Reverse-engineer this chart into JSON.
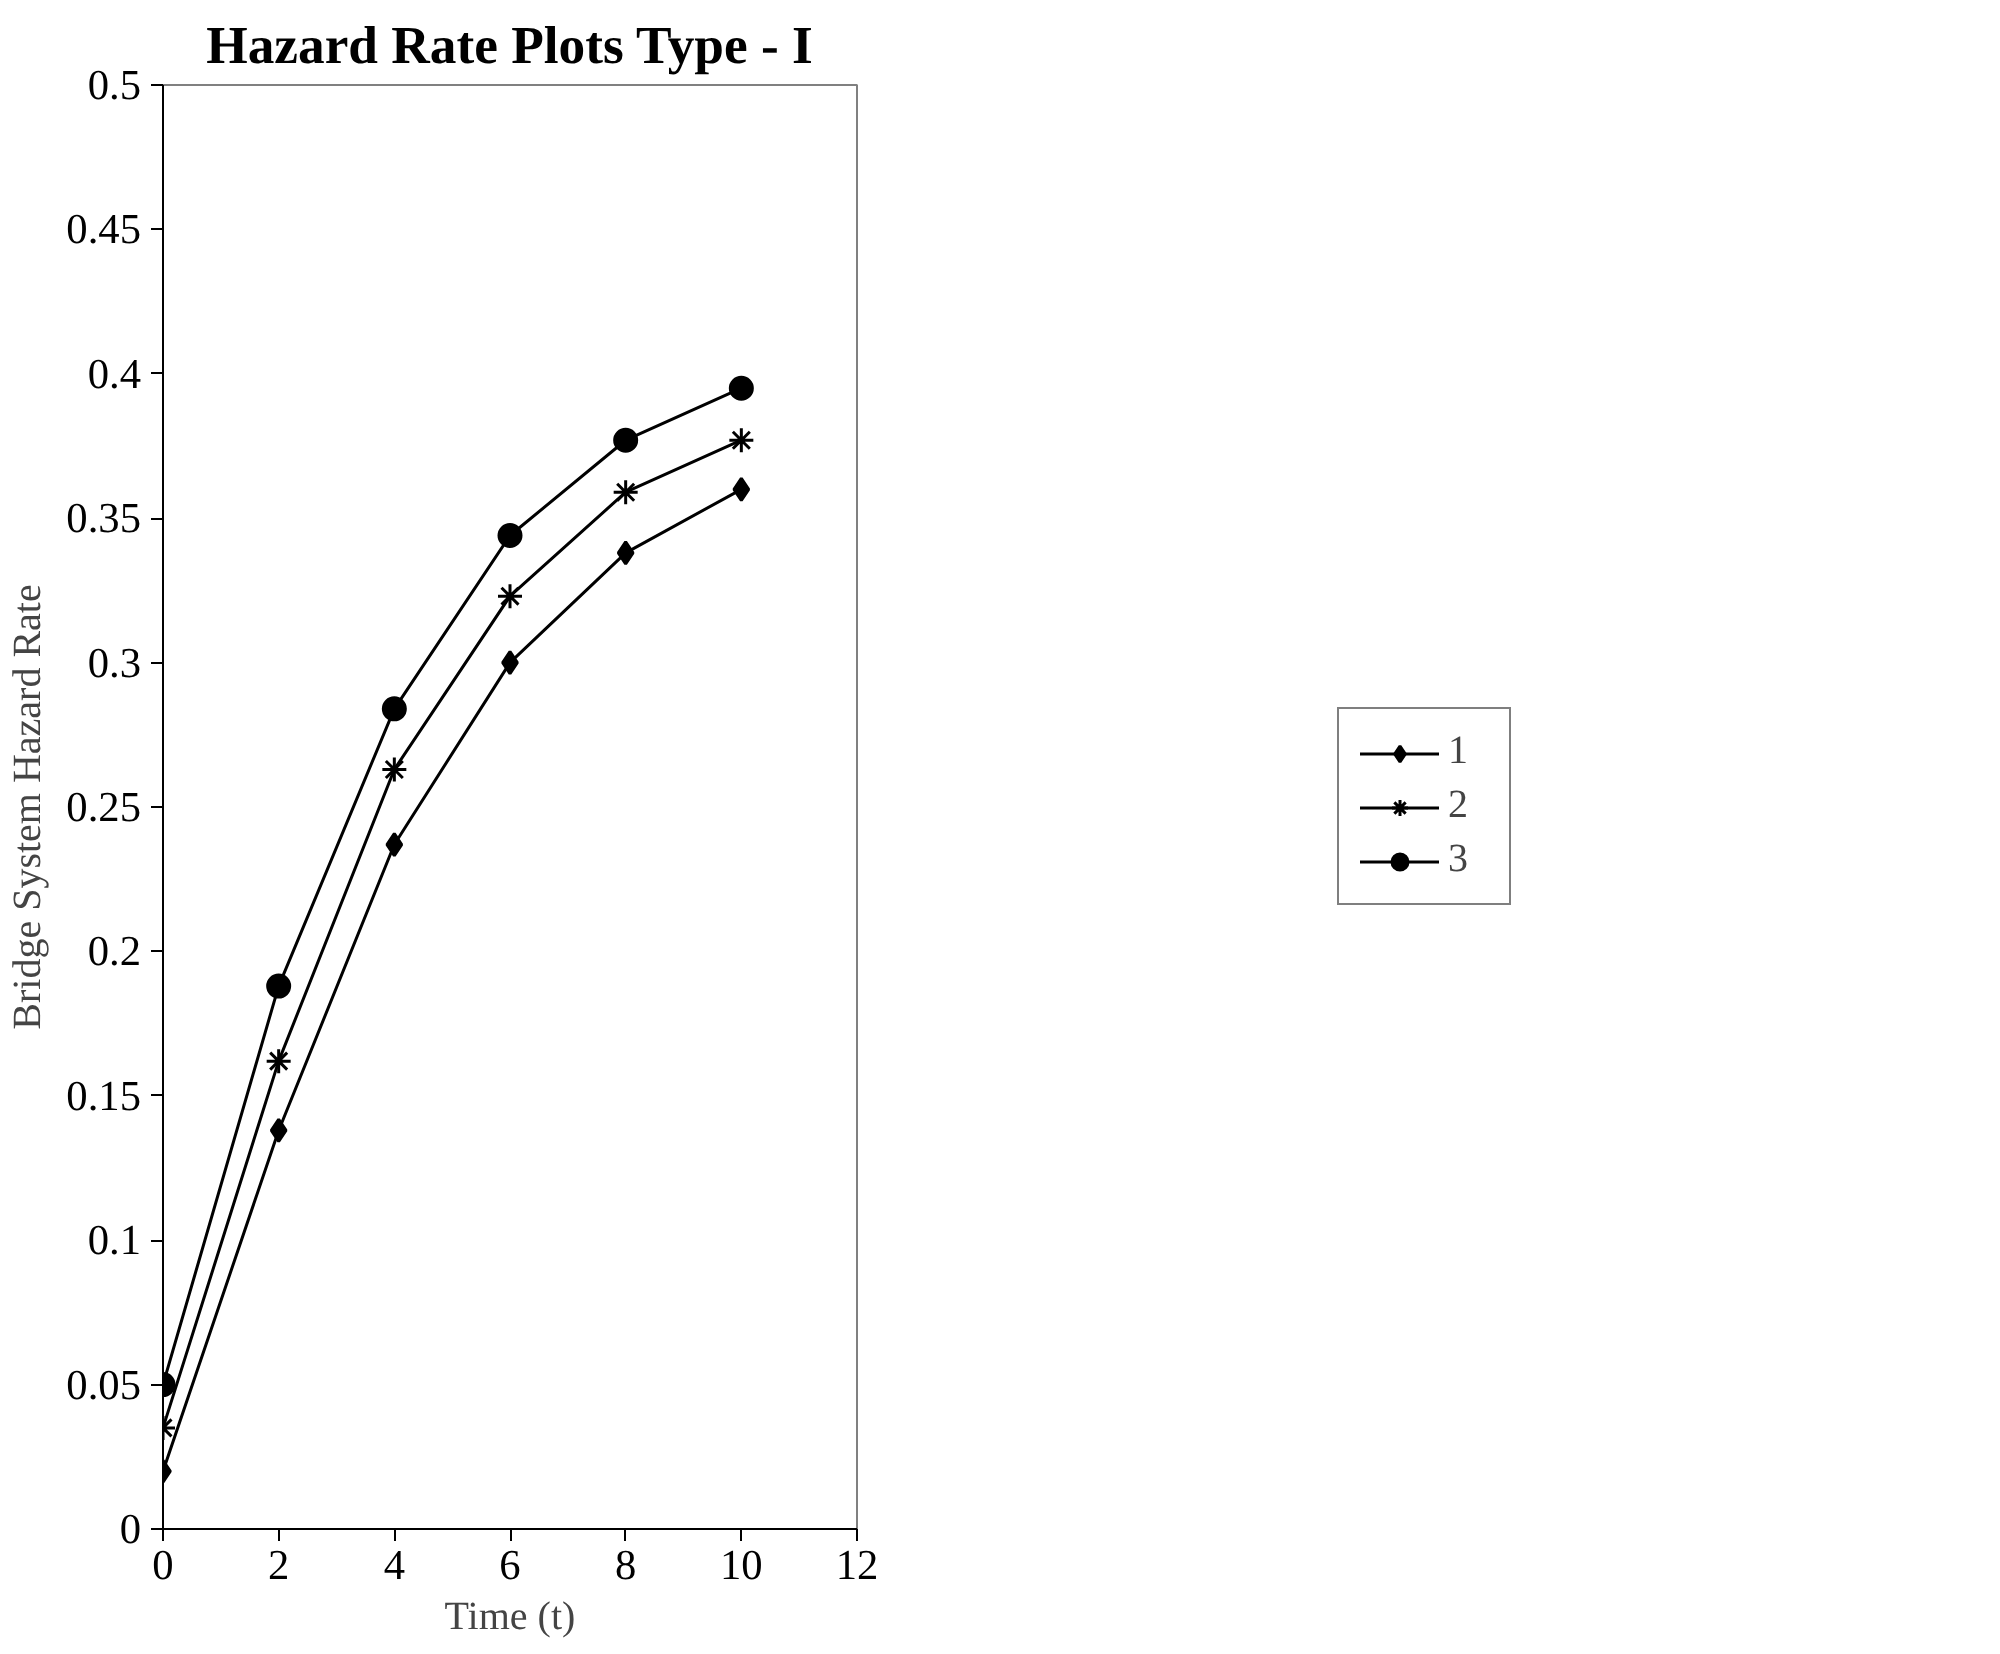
{
  "chart_data": {
    "type": "line",
    "title": "Hazard Rate Plots Type - I",
    "xlabel": "Time (t)",
    "ylabel": "Bridge System Hazard Rate",
    "x": [
      0,
      2,
      4,
      6,
      8,
      10
    ],
    "series": [
      {
        "name": "1",
        "color": "#000000",
        "marker": "diamond",
        "values": [
          0.02,
          0.138,
          0.237,
          0.3,
          0.338,
          0.36
        ]
      },
      {
        "name": "2",
        "color": "#000000",
        "marker": "cross",
        "values": [
          0.035,
          0.162,
          0.263,
          0.323,
          0.359,
          0.377
        ]
      },
      {
        "name": "3",
        "color": "#000000",
        "marker": "circle",
        "values": [
          0.05,
          0.188,
          0.284,
          0.344,
          0.377,
          0.395
        ]
      }
    ],
    "xlim": [
      0,
      12
    ],
    "xticks": [
      0,
      2,
      4,
      6,
      8,
      10,
      12
    ],
    "ylim": [
      0,
      0.5
    ],
    "yticks": [
      0,
      0.05,
      0.1,
      0.15,
      0.2,
      0.25,
      0.3,
      0.35,
      0.4,
      0.45,
      0.5
    ],
    "grid": false,
    "legend": "right",
    "line_style": "solid"
  }
}
